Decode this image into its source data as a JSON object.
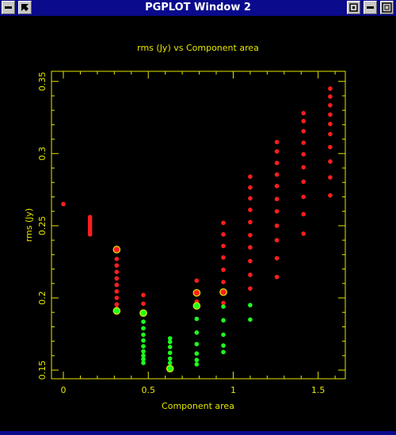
{
  "window": {
    "title": "PGPLOT Window 2",
    "colors": {
      "titlebar": "#0a0a8c",
      "background": "#000000",
      "axes": "#e6e600",
      "red": "#ff1e1e",
      "green": "#1eff1e"
    },
    "buttons": [
      "menu-icon",
      "resize-arrow-icon",
      "minimize-icon",
      "iconify-icon",
      "maximize-icon"
    ]
  },
  "chart_data": {
    "type": "scatter",
    "title": "rms (Jy) vs Component area",
    "xlabel": "Component area",
    "ylabel": "rms (Jy)",
    "xlim": [
      -0.07,
      1.66
    ],
    "ylim": [
      0.144,
      0.357
    ],
    "xticks": [
      0,
      0.5,
      1,
      1.5
    ],
    "xtick_labels": [
      "0",
      "0.5",
      "1",
      "1.5"
    ],
    "yticks": [
      0.15,
      0.2,
      0.25,
      0.3,
      0.35
    ],
    "ytick_labels": [
      "0.15",
      "0.2",
      "0.25",
      "0.3",
      "0.35"
    ],
    "grid": false,
    "legend": "none",
    "series": [
      {
        "color": "red",
        "points": [
          [
            0.0,
            0.265
          ],
          [
            0.157,
            0.256
          ],
          [
            0.157,
            0.2545
          ],
          [
            0.157,
            0.253
          ],
          [
            0.157,
            0.2515
          ],
          [
            0.157,
            0.25
          ],
          [
            0.157,
            0.2485
          ],
          [
            0.157,
            0.247
          ],
          [
            0.157,
            0.2455
          ],
          [
            0.157,
            0.244
          ],
          [
            0.314,
            0.227
          ],
          [
            0.314,
            0.2225
          ],
          [
            0.314,
            0.218
          ],
          [
            0.314,
            0.2135
          ],
          [
            0.314,
            0.209
          ],
          [
            0.314,
            0.2045
          ],
          [
            0.314,
            0.2
          ],
          [
            0.314,
            0.1955
          ],
          [
            0.314,
            0.1925
          ],
          [
            0.471,
            0.202
          ],
          [
            0.471,
            0.196
          ],
          [
            0.785,
            0.212
          ],
          [
            0.785,
            0.1975
          ],
          [
            0.942,
            0.252
          ],
          [
            0.942,
            0.244
          ],
          [
            0.942,
            0.236
          ],
          [
            0.942,
            0.228
          ],
          [
            0.942,
            0.2195
          ],
          [
            0.942,
            0.211
          ],
          [
            0.942,
            0.1965
          ],
          [
            1.1,
            0.284
          ],
          [
            1.1,
            0.2765
          ],
          [
            1.1,
            0.269
          ],
          [
            1.1,
            0.261
          ],
          [
            1.1,
            0.2525
          ],
          [
            1.1,
            0.2435
          ],
          [
            1.1,
            0.235
          ],
          [
            1.1,
            0.2255
          ],
          [
            1.1,
            0.216
          ],
          [
            1.1,
            0.2065
          ],
          [
            1.257,
            0.308
          ],
          [
            1.257,
            0.3015
          ],
          [
            1.257,
            0.2935
          ],
          [
            1.257,
            0.2855
          ],
          [
            1.257,
            0.2775
          ],
          [
            1.257,
            0.2685
          ],
          [
            1.257,
            0.26
          ],
          [
            1.257,
            0.25
          ],
          [
            1.257,
            0.24
          ],
          [
            1.257,
            0.2275
          ],
          [
            1.257,
            0.2145
          ],
          [
            1.414,
            0.328
          ],
          [
            1.414,
            0.3225
          ],
          [
            1.414,
            0.3155
          ],
          [
            1.414,
            0.3075
          ],
          [
            1.414,
            0.2995
          ],
          [
            1.414,
            0.2905
          ],
          [
            1.414,
            0.2805
          ],
          [
            1.414,
            0.27
          ],
          [
            1.414,
            0.258
          ],
          [
            1.414,
            0.2445
          ],
          [
            1.571,
            0.345
          ],
          [
            1.571,
            0.3395
          ],
          [
            1.571,
            0.3335
          ],
          [
            1.571,
            0.327
          ],
          [
            1.571,
            0.3205
          ],
          [
            1.571,
            0.3135
          ],
          [
            1.571,
            0.3045
          ],
          [
            1.571,
            0.2945
          ],
          [
            1.571,
            0.2835
          ],
          [
            1.571,
            0.271
          ]
        ]
      },
      {
        "color": "green",
        "points": [
          [
            0.314,
            0.191
          ],
          [
            0.471,
            0.1835
          ],
          [
            0.471,
            0.179
          ],
          [
            0.471,
            0.1745
          ],
          [
            0.471,
            0.1705
          ],
          [
            0.471,
            0.1665
          ],
          [
            0.471,
            0.163
          ],
          [
            0.471,
            0.16
          ],
          [
            0.471,
            0.1575
          ],
          [
            0.471,
            0.155
          ],
          [
            0.628,
            0.172
          ],
          [
            0.628,
            0.1695
          ],
          [
            0.628,
            0.166
          ],
          [
            0.628,
            0.162
          ],
          [
            0.628,
            0.158
          ],
          [
            0.628,
            0.155
          ],
          [
            0.785,
            0.1855
          ],
          [
            0.785,
            0.176
          ],
          [
            0.785,
            0.168
          ],
          [
            0.785,
            0.1615
          ],
          [
            0.785,
            0.157
          ],
          [
            0.785,
            0.154
          ],
          [
            0.942,
            0.194
          ],
          [
            0.942,
            0.1845
          ],
          [
            0.942,
            0.1745
          ],
          [
            0.942,
            0.167
          ],
          [
            0.942,
            0.1625
          ],
          [
            1.1,
            0.195
          ],
          [
            1.1,
            0.185
          ]
        ]
      }
    ],
    "highlighted_points": [
      [
        0.314,
        0.2335,
        "red"
      ],
      [
        0.314,
        0.191,
        "green"
      ],
      [
        0.471,
        0.1895,
        "green"
      ],
      [
        0.628,
        0.151,
        "green"
      ],
      [
        0.785,
        0.2035,
        "red"
      ],
      [
        0.785,
        0.1945,
        "green"
      ],
      [
        0.942,
        0.204,
        "red"
      ]
    ]
  }
}
